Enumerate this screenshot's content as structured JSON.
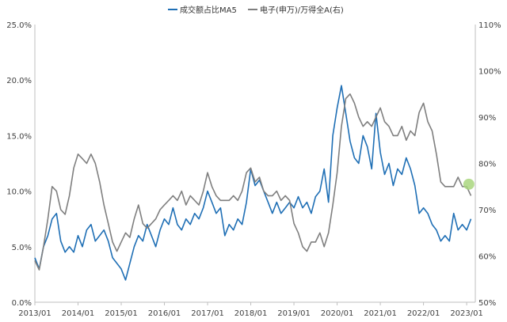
{
  "chart_data": {
    "type": "line",
    "title": "",
    "legend_position": "top-center",
    "grid": false,
    "x_ticks": [
      "2013/01",
      "2014/01",
      "2015/01",
      "2016/01",
      "2017/01",
      "2018/01",
      "2019/01",
      "2020/01",
      "2021/01",
      "2022/01",
      "2023/01"
    ],
    "y_left": {
      "ticks": [
        "0.0%",
        "5.0%",
        "10.0%",
        "15.0%",
        "20.0%",
        "25.0%"
      ],
      "lim": [
        0,
        25
      ]
    },
    "y_right": {
      "ticks": [
        "50%",
        "60%",
        "70%",
        "80%",
        "90%",
        "100%",
        "110%"
      ],
      "lim": [
        50,
        110
      ]
    },
    "series": [
      {
        "name": "成交额占比MA5",
        "axis": "left",
        "color": "#1f6fb5",
        "x": [
          2013.0,
          2013.1,
          2013.2,
          2013.3,
          2013.4,
          2013.5,
          2013.6,
          2013.7,
          2013.8,
          2013.9,
          2014.0,
          2014.1,
          2014.2,
          2014.3,
          2014.4,
          2014.5,
          2014.6,
          2014.7,
          2014.8,
          2014.9,
          2015.0,
          2015.1,
          2015.2,
          2015.3,
          2015.4,
          2015.5,
          2015.6,
          2015.7,
          2015.8,
          2015.9,
          2016.0,
          2016.1,
          2016.2,
          2016.3,
          2016.4,
          2016.5,
          2016.6,
          2016.7,
          2016.8,
          2016.9,
          2017.0,
          2017.1,
          2017.2,
          2017.3,
          2017.4,
          2017.5,
          2017.6,
          2017.7,
          2017.8,
          2017.9,
          2018.0,
          2018.1,
          2018.2,
          2018.3,
          2018.4,
          2018.5,
          2018.6,
          2018.7,
          2018.8,
          2018.9,
          2019.0,
          2019.1,
          2019.2,
          2019.3,
          2019.4,
          2019.5,
          2019.6,
          2019.7,
          2019.8,
          2019.9,
          2020.0,
          2020.1,
          2020.2,
          2020.3,
          2020.4,
          2020.5,
          2020.6,
          2020.7,
          2020.8,
          2020.9,
          2021.0,
          2021.1,
          2021.2,
          2021.3,
          2021.4,
          2021.5,
          2021.6,
          2021.7,
          2021.8,
          2021.9,
          2022.0,
          2022.1,
          2022.2,
          2022.3,
          2022.4,
          2022.5,
          2022.6,
          2022.7,
          2022.8,
          2022.9,
          2023.0,
          2023.1
        ],
        "values": [
          4.0,
          3.0,
          5.0,
          6.0,
          7.5,
          8.0,
          5.5,
          4.5,
          5.0,
          4.5,
          6.0,
          5.0,
          6.5,
          7.0,
          5.5,
          6.0,
          6.5,
          5.5,
          4.0,
          3.5,
          3.0,
          2.0,
          3.5,
          5.0,
          6.0,
          5.5,
          7.0,
          6.0,
          5.0,
          6.5,
          7.5,
          7.0,
          8.5,
          7.0,
          6.5,
          7.5,
          7.0,
          8.0,
          7.5,
          8.5,
          10.0,
          9.0,
          8.0,
          8.5,
          6.0,
          7.0,
          6.5,
          7.5,
          7.0,
          9.0,
          12.0,
          10.5,
          11.0,
          10.0,
          9.0,
          8.0,
          9.0,
          8.0,
          8.5,
          9.0,
          8.5,
          9.5,
          8.5,
          9.0,
          8.0,
          9.5,
          10.0,
          12.0,
          9.0,
          15.0,
          17.5,
          19.5,
          17.0,
          14.5,
          13.0,
          12.5,
          15.0,
          14.0,
          12.0,
          17.0,
          13.5,
          11.5,
          12.5,
          10.5,
          12.0,
          11.5,
          13.0,
          12.0,
          10.5,
          8.0,
          8.5,
          8.0,
          7.0,
          6.5,
          5.5,
          6.0,
          5.5,
          8.0,
          6.5,
          7.0,
          6.5,
          7.5
        ]
      },
      {
        "name": "电子(申万)/万得全A(右)",
        "axis": "right",
        "color": "#7f7f7f",
        "x": [
          2013.0,
          2013.1,
          2013.2,
          2013.3,
          2013.4,
          2013.5,
          2013.6,
          2013.7,
          2013.8,
          2013.9,
          2014.0,
          2014.1,
          2014.2,
          2014.3,
          2014.4,
          2014.5,
          2014.6,
          2014.7,
          2014.8,
          2014.9,
          2015.0,
          2015.1,
          2015.2,
          2015.3,
          2015.4,
          2015.5,
          2015.6,
          2015.7,
          2015.8,
          2015.9,
          2016.0,
          2016.1,
          2016.2,
          2016.3,
          2016.4,
          2016.5,
          2016.6,
          2016.7,
          2016.8,
          2016.9,
          2017.0,
          2017.1,
          2017.2,
          2017.3,
          2017.4,
          2017.5,
          2017.6,
          2017.7,
          2017.8,
          2017.9,
          2018.0,
          2018.1,
          2018.2,
          2018.3,
          2018.4,
          2018.5,
          2018.6,
          2018.7,
          2018.8,
          2018.9,
          2019.0,
          2019.1,
          2019.2,
          2019.3,
          2019.4,
          2019.5,
          2019.6,
          2019.7,
          2019.8,
          2019.9,
          2020.0,
          2020.1,
          2020.2,
          2020.3,
          2020.4,
          2020.5,
          2020.6,
          2020.7,
          2020.8,
          2020.9,
          2021.0,
          2021.1,
          2021.2,
          2021.3,
          2021.4,
          2021.5,
          2021.6,
          2021.7,
          2021.8,
          2021.9,
          2022.0,
          2022.1,
          2022.2,
          2022.3,
          2022.4,
          2022.5,
          2022.6,
          2022.7,
          2022.8,
          2022.9,
          2023.0,
          2023.1
        ],
        "values": [
          59,
          57,
          62,
          68,
          75,
          74,
          70,
          69,
          73,
          79,
          82,
          81,
          80,
          82,
          80,
          76,
          71,
          67,
          63,
          61,
          63,
          65,
          64,
          68,
          71,
          67,
          66,
          67,
          68,
          70,
          71,
          72,
          73,
          72,
          74,
          71,
          73,
          72,
          71,
          74,
          78,
          75,
          73,
          72,
          72,
          72,
          73,
          72,
          74,
          78,
          79,
          76,
          77,
          74,
          73,
          73,
          74,
          72,
          73,
          72,
          67,
          65,
          62,
          61,
          63,
          63,
          65,
          62,
          65,
          71,
          78,
          88,
          94,
          95,
          93,
          90,
          88,
          89,
          88,
          90,
          92,
          89,
          88,
          86,
          86,
          88,
          85,
          87,
          86,
          91,
          93,
          89,
          87,
          82,
          76,
          75,
          75,
          75,
          77,
          75,
          75,
          73
        ]
      }
    ],
    "marker": {
      "x": 2023.05,
      "value": 75.5,
      "axis": "right",
      "color": "#a9d67e"
    }
  }
}
